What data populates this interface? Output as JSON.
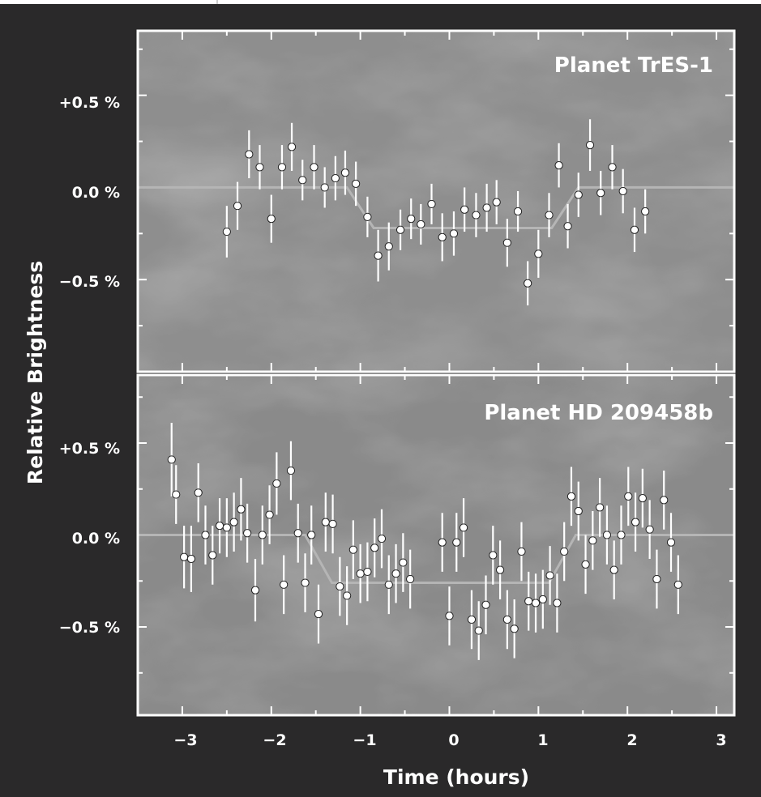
{
  "chart_data": {
    "type": "scatter",
    "xlabel": "Time (hours)",
    "ylabel": "Relative Brightness",
    "xlim": [
      -3.5,
      3.2
    ],
    "x_ticks": [
      -3,
      -2,
      -1,
      0,
      1,
      2,
      3
    ],
    "x_tick_labels": [
      "−3",
      "−2",
      "−1",
      "0",
      "1",
      "2",
      "3"
    ],
    "panels": [
      {
        "title": "Planet TrES-1",
        "ylim": [
          -1.0,
          0.85
        ],
        "y_ticks": [
          0.5,
          0.0,
          -0.5
        ],
        "y_tick_labels": [
          "+0.5 %",
          "0.0 %",
          "−0.5 %"
        ],
        "model": {
          "x": [
            -3.5,
            -1.15,
            -0.85,
            1.15,
            1.45,
            3.2
          ],
          "y": [
            0.0,
            0.0,
            -0.22,
            -0.22,
            0.0,
            0.0
          ]
        },
        "points": [
          {
            "x": -2.5,
            "y": -0.24,
            "err": 0.14
          },
          {
            "x": -2.38,
            "y": -0.1,
            "err": 0.13
          },
          {
            "x": -2.25,
            "y": 0.18,
            "err": 0.13
          },
          {
            "x": -2.13,
            "y": 0.11,
            "err": 0.12
          },
          {
            "x": -2.0,
            "y": -0.17,
            "err": 0.13
          },
          {
            "x": -1.88,
            "y": 0.11,
            "err": 0.12
          },
          {
            "x": -1.77,
            "y": 0.22,
            "err": 0.13
          },
          {
            "x": -1.65,
            "y": 0.04,
            "err": 0.11
          },
          {
            "x": -1.52,
            "y": 0.11,
            "err": 0.12
          },
          {
            "x": -1.4,
            "y": 0.0,
            "err": 0.11
          },
          {
            "x": -1.28,
            "y": 0.05,
            "err": 0.12
          },
          {
            "x": -1.17,
            "y": 0.08,
            "err": 0.12
          },
          {
            "x": -1.05,
            "y": 0.02,
            "err": 0.12
          },
          {
            "x": -0.92,
            "y": -0.16,
            "err": 0.11
          },
          {
            "x": -0.8,
            "y": -0.37,
            "err": 0.14
          },
          {
            "x": -0.68,
            "y": -0.32,
            "err": 0.13
          },
          {
            "x": -0.55,
            "y": -0.23,
            "err": 0.11
          },
          {
            "x": -0.43,
            "y": -0.17,
            "err": 0.11
          },
          {
            "x": -0.32,
            "y": -0.2,
            "err": 0.11
          },
          {
            "x": -0.2,
            "y": -0.09,
            "err": 0.11
          },
          {
            "x": -0.08,
            "y": -0.27,
            "err": 0.13
          },
          {
            "x": 0.05,
            "y": -0.25,
            "err": 0.12
          },
          {
            "x": 0.17,
            "y": -0.12,
            "err": 0.12
          },
          {
            "x": 0.3,
            "y": -0.15,
            "err": 0.12
          },
          {
            "x": 0.42,
            "y": -0.11,
            "err": 0.13
          },
          {
            "x": 0.53,
            "y": -0.08,
            "err": 0.12
          },
          {
            "x": 0.65,
            "y": -0.3,
            "err": 0.13
          },
          {
            "x": 0.77,
            "y": -0.13,
            "err": 0.11
          },
          {
            "x": 0.88,
            "y": -0.52,
            "err": 0.12
          },
          {
            "x": 1.0,
            "y": -0.36,
            "err": 0.13
          },
          {
            "x": 1.12,
            "y": -0.15,
            "err": 0.12
          },
          {
            "x": 1.23,
            "y": 0.12,
            "err": 0.12
          },
          {
            "x": 1.33,
            "y": -0.21,
            "err": 0.12
          },
          {
            "x": 1.45,
            "y": -0.04,
            "err": 0.12
          },
          {
            "x": 1.58,
            "y": 0.23,
            "err": 0.14
          },
          {
            "x": 1.7,
            "y": -0.03,
            "err": 0.12
          },
          {
            "x": 1.83,
            "y": 0.11,
            "err": 0.12
          },
          {
            "x": 1.95,
            "y": -0.02,
            "err": 0.12
          },
          {
            "x": 2.08,
            "y": -0.23,
            "err": 0.12
          },
          {
            "x": 2.2,
            "y": -0.13,
            "err": 0.12
          }
        ]
      },
      {
        "title": "Planet HD 209458b",
        "ylim": [
          -0.98,
          0.87
        ],
        "y_ticks": [
          0.5,
          0.0,
          -0.5
        ],
        "y_tick_labels": [
          "+0.5 %",
          "0.0 %",
          "−0.5 %"
        ],
        "model": {
          "x": [
            -3.5,
            -1.62,
            -1.32,
            1.12,
            1.42,
            3.2
          ],
          "y": [
            0.0,
            0.0,
            -0.26,
            -0.26,
            0.0,
            0.0
          ]
        },
        "points": [
          {
            "x": -3.12,
            "y": 0.41,
            "err": 0.2
          },
          {
            "x": -3.07,
            "y": 0.22,
            "err": 0.16
          },
          {
            "x": -2.98,
            "y": -0.12,
            "err": 0.17
          },
          {
            "x": -2.9,
            "y": -0.13,
            "err": 0.18
          },
          {
            "x": -2.82,
            "y": 0.23,
            "err": 0.16
          },
          {
            "x": -2.74,
            "y": 0.0,
            "err": 0.16
          },
          {
            "x": -2.66,
            "y": -0.11,
            "err": 0.16
          },
          {
            "x": -2.58,
            "y": 0.05,
            "err": 0.15
          },
          {
            "x": -2.5,
            "y": 0.04,
            "err": 0.16
          },
          {
            "x": -2.42,
            "y": 0.07,
            "err": 0.16
          },
          {
            "x": -2.34,
            "y": 0.14,
            "err": 0.17
          },
          {
            "x": -2.27,
            "y": 0.01,
            "err": 0.16
          },
          {
            "x": -2.18,
            "y": -0.3,
            "err": 0.17
          },
          {
            "x": -2.1,
            "y": 0.0,
            "err": 0.16
          },
          {
            "x": -2.02,
            "y": 0.11,
            "err": 0.16
          },
          {
            "x": -1.94,
            "y": 0.28,
            "err": 0.17
          },
          {
            "x": -1.86,
            "y": -0.27,
            "err": 0.16
          },
          {
            "x": -1.78,
            "y": 0.35,
            "err": 0.16
          },
          {
            "x": -1.7,
            "y": 0.01,
            "err": 0.16
          },
          {
            "x": -1.62,
            "y": -0.26,
            "err": 0.16
          },
          {
            "x": -1.55,
            "y": 0.0,
            "err": 0.16
          },
          {
            "x": -1.47,
            "y": -0.43,
            "err": 0.16
          },
          {
            "x": -1.39,
            "y": 0.07,
            "err": 0.16
          },
          {
            "x": -1.31,
            "y": 0.06,
            "err": 0.16
          },
          {
            "x": -1.23,
            "y": -0.28,
            "err": 0.16
          },
          {
            "x": -1.15,
            "y": -0.33,
            "err": 0.16
          },
          {
            "x": -1.08,
            "y": -0.08,
            "err": 0.16
          },
          {
            "x": -1.0,
            "y": -0.21,
            "err": 0.16
          },
          {
            "x": -0.92,
            "y": -0.2,
            "err": 0.16
          },
          {
            "x": -0.84,
            "y": -0.07,
            "err": 0.16
          },
          {
            "x": -0.76,
            "y": -0.02,
            "err": 0.16
          },
          {
            "x": -0.68,
            "y": -0.27,
            "err": 0.16
          },
          {
            "x": -0.6,
            "y": -0.21,
            "err": 0.16
          },
          {
            "x": -0.52,
            "y": -0.15,
            "err": 0.16
          },
          {
            "x": -0.44,
            "y": -0.24,
            "err": 0.16
          },
          {
            "x": -0.08,
            "y": -0.04,
            "err": 0.16
          },
          {
            "x": 0.0,
            "y": -0.44,
            "err": 0.16
          },
          {
            "x": 0.08,
            "y": -0.04,
            "err": 0.16
          },
          {
            "x": 0.16,
            "y": 0.04,
            "err": 0.16
          },
          {
            "x": 0.25,
            "y": -0.46,
            "err": 0.16
          },
          {
            "x": 0.33,
            "y": -0.52,
            "err": 0.16
          },
          {
            "x": 0.41,
            "y": -0.38,
            "err": 0.16
          },
          {
            "x": 0.49,
            "y": -0.11,
            "err": 0.16
          },
          {
            "x": 0.57,
            "y": -0.19,
            "err": 0.16
          },
          {
            "x": 0.65,
            "y": -0.46,
            "err": 0.16
          },
          {
            "x": 0.73,
            "y": -0.51,
            "err": 0.16
          },
          {
            "x": 0.81,
            "y": -0.09,
            "err": 0.16
          },
          {
            "x": 0.89,
            "y": -0.36,
            "err": 0.16
          },
          {
            "x": 0.97,
            "y": -0.37,
            "err": 0.16
          },
          {
            "x": 1.05,
            "y": -0.35,
            "err": 0.16
          },
          {
            "x": 1.13,
            "y": -0.22,
            "err": 0.16
          },
          {
            "x": 1.21,
            "y": -0.37,
            "err": 0.16
          },
          {
            "x": 1.29,
            "y": -0.09,
            "err": 0.16
          },
          {
            "x": 1.37,
            "y": 0.21,
            "err": 0.16
          },
          {
            "x": 1.45,
            "y": 0.13,
            "err": 0.16
          },
          {
            "x": 1.53,
            "y": -0.16,
            "err": 0.16
          },
          {
            "x": 1.61,
            "y": -0.03,
            "err": 0.16
          },
          {
            "x": 1.69,
            "y": 0.15,
            "err": 0.16
          },
          {
            "x": 1.77,
            "y": 0.0,
            "err": 0.16
          },
          {
            "x": 1.85,
            "y": -0.19,
            "err": 0.16
          },
          {
            "x": 1.93,
            "y": 0.0,
            "err": 0.16
          },
          {
            "x": 2.01,
            "y": 0.21,
            "err": 0.16
          },
          {
            "x": 2.09,
            "y": 0.07,
            "err": 0.16
          },
          {
            "x": 2.17,
            "y": 0.2,
            "err": 0.16
          },
          {
            "x": 2.25,
            "y": 0.03,
            "err": 0.16
          },
          {
            "x": 2.33,
            "y": -0.24,
            "err": 0.16
          },
          {
            "x": 2.41,
            "y": 0.19,
            "err": 0.16
          },
          {
            "x": 2.49,
            "y": -0.04,
            "err": 0.16
          },
          {
            "x": 2.57,
            "y": -0.27,
            "err": 0.16
          }
        ]
      }
    ]
  },
  "colors": {
    "figure_background": "#2a292a",
    "panel_background": "#8e8e8e",
    "frame": "#ffffff",
    "points": "#ffffff",
    "model_curve": "#b5b5b5"
  }
}
